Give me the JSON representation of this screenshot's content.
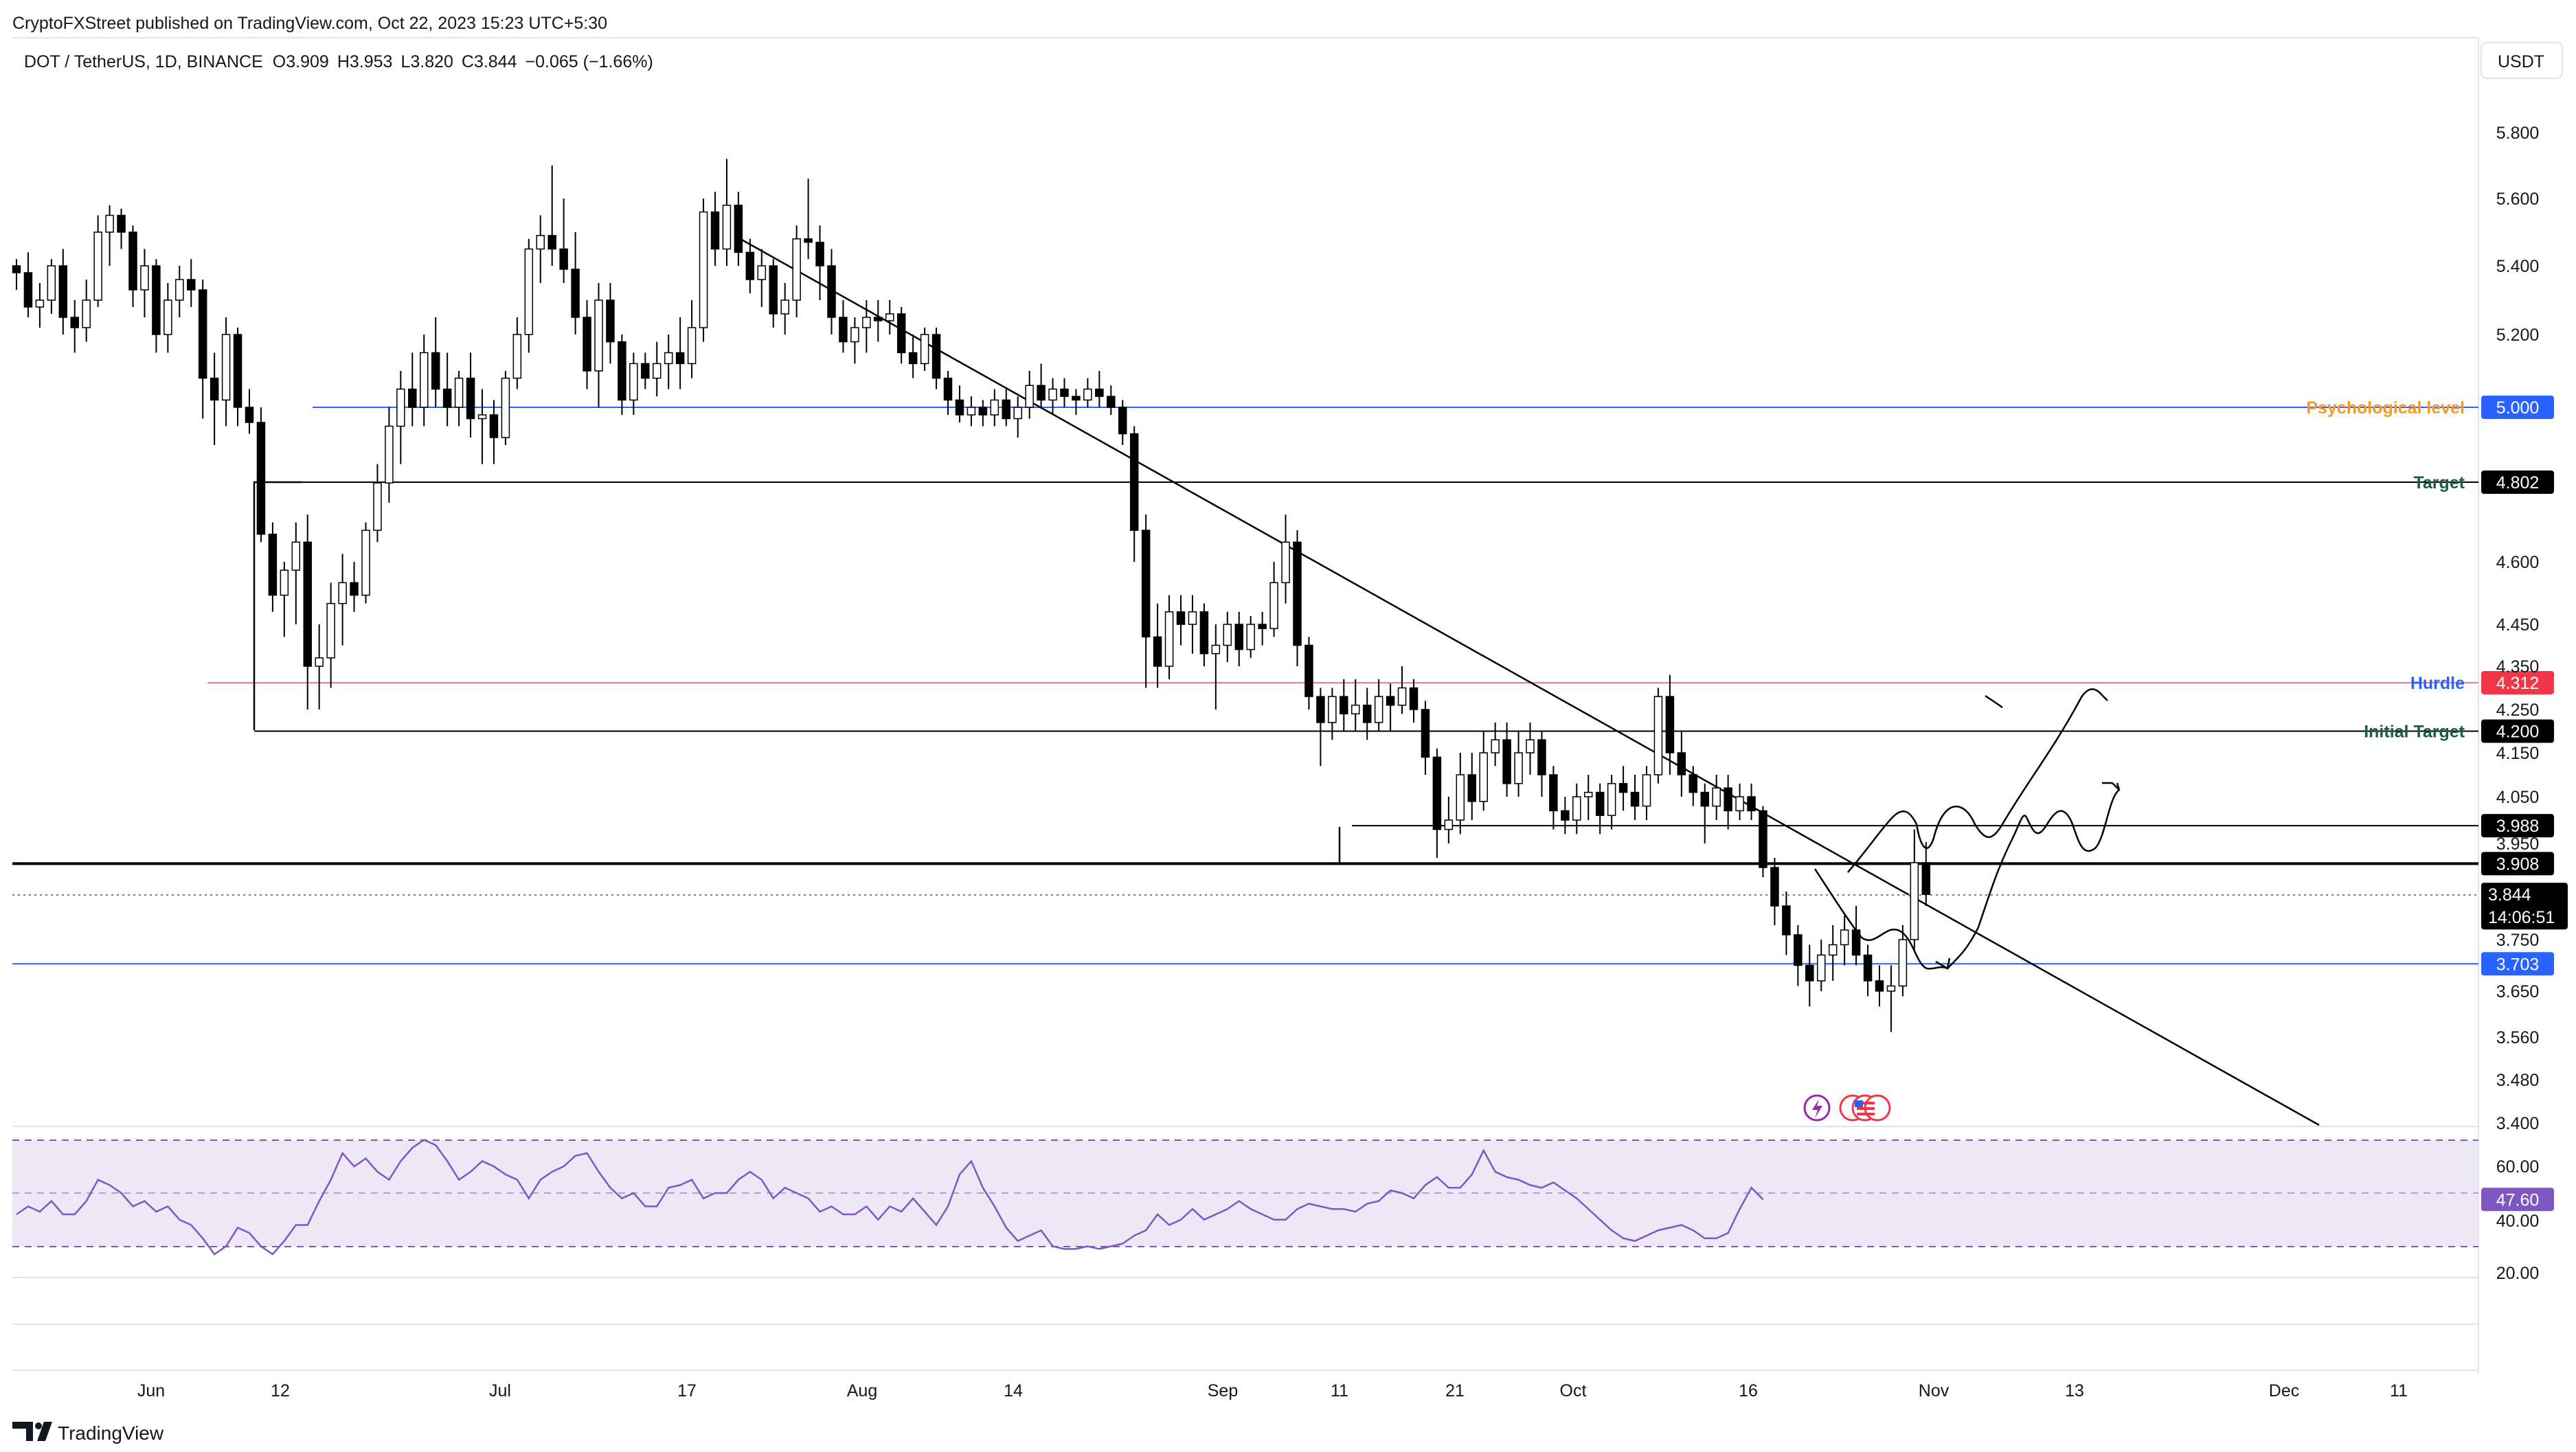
{
  "header": {
    "published_by": "CryptoFXStreet published on TradingView.com, Oct 22, 2023 15:23 UTC+5:30",
    "symbol": "DOT / TetherUS, 1D, BINANCE",
    "open": "O3.909",
    "high": "H3.953",
    "low": "L3.820",
    "close": "C3.844",
    "change": "−0.065 (−1.66%)"
  },
  "footer": {
    "logo_text": "TradingView"
  },
  "colors": {
    "up_candle": "#ffffff",
    "down_candle": "#000000",
    "psychological": "#f59a23",
    "hurdle_line": "#f08080",
    "hurdle_label": "#2962ff",
    "target": "#1e5c47",
    "blue_line": "#2962ff",
    "rsi": "#7e57c2",
    "rsi_band": "#ede7f6"
  },
  "chart_data": {
    "type": "candlestick",
    "currency": "USDT",
    "ylim": [
      3.4,
      5.9
    ],
    "y_ticks": [
      "5.800",
      "5.600",
      "5.400",
      "5.200",
      "4.600",
      "4.450",
      "4.350",
      "4.250",
      "4.150",
      "4.050",
      "3.950",
      "3.750",
      "3.650",
      "3.560",
      "3.480",
      "3.400"
    ],
    "x_ticks": [
      "Jun",
      "12",
      "Jul",
      "17",
      "Aug",
      "14",
      "Sep",
      "11",
      "21",
      "Oct",
      "16",
      "Nov",
      "13",
      "Dec",
      "11"
    ],
    "candles": [
      [
        5.4,
        5.42,
        5.33,
        5.38
      ],
      [
        5.38,
        5.44,
        5.25,
        5.28
      ],
      [
        5.28,
        5.35,
        5.22,
        5.3
      ],
      [
        5.3,
        5.42,
        5.26,
        5.4
      ],
      [
        5.4,
        5.45,
        5.2,
        5.25
      ],
      [
        5.25,
        5.3,
        5.15,
        5.22
      ],
      [
        5.22,
        5.36,
        5.18,
        5.3
      ],
      [
        5.3,
        5.55,
        5.28,
        5.5
      ],
      [
        5.5,
        5.58,
        5.4,
        5.55
      ],
      [
        5.55,
        5.57,
        5.45,
        5.5
      ],
      [
        5.5,
        5.52,
        5.28,
        5.33
      ],
      [
        5.33,
        5.45,
        5.25,
        5.4
      ],
      [
        5.4,
        5.42,
        5.15,
        5.2
      ],
      [
        5.2,
        5.35,
        5.15,
        5.3
      ],
      [
        5.3,
        5.4,
        5.25,
        5.36
      ],
      [
        5.36,
        5.42,
        5.28,
        5.33
      ],
      [
        5.33,
        5.36,
        4.97,
        5.08
      ],
      [
        5.08,
        5.15,
        4.9,
        5.02
      ],
      [
        5.02,
        5.25,
        4.95,
        5.2
      ],
      [
        5.2,
        5.22,
        4.95,
        5.0
      ],
      [
        5.0,
        5.05,
        4.93,
        4.96
      ],
      [
        4.96,
        5.0,
        4.65,
        4.67
      ],
      [
        4.67,
        4.7,
        4.48,
        4.52
      ],
      [
        4.52,
        4.6,
        4.42,
        4.58
      ],
      [
        4.58,
        4.7,
        4.45,
        4.65
      ],
      [
        4.65,
        4.72,
        4.25,
        4.35
      ],
      [
        4.35,
        4.45,
        4.25,
        4.37
      ],
      [
        4.37,
        4.55,
        4.3,
        4.5
      ],
      [
        4.5,
        4.62,
        4.4,
        4.55
      ],
      [
        4.55,
        4.6,
        4.48,
        4.52
      ],
      [
        4.52,
        4.7,
        4.5,
        4.68
      ],
      [
        4.68,
        4.85,
        4.65,
        4.8
      ],
      [
        4.8,
        5.0,
        4.75,
        4.95
      ],
      [
        4.95,
        5.1,
        4.85,
        5.05
      ],
      [
        5.05,
        5.15,
        4.95,
        5.0
      ],
      [
        5.0,
        5.2,
        4.95,
        5.15
      ],
      [
        5.15,
        5.25,
        5.0,
        5.05
      ],
      [
        5.05,
        5.15,
        4.95,
        5.0
      ],
      [
        5.0,
        5.1,
        4.95,
        5.08
      ],
      [
        5.08,
        5.15,
        4.92,
        4.97
      ],
      [
        4.97,
        5.05,
        4.85,
        4.98
      ],
      [
        4.98,
        5.02,
        4.85,
        4.92
      ],
      [
        4.92,
        5.1,
        4.9,
        5.08
      ],
      [
        5.08,
        5.25,
        5.05,
        5.2
      ],
      [
        5.2,
        5.48,
        5.15,
        5.45
      ],
      [
        5.45,
        5.55,
        5.35,
        5.49
      ],
      [
        5.49,
        5.7,
        5.4,
        5.45
      ],
      [
        5.45,
        5.6,
        5.35,
        5.39
      ],
      [
        5.39,
        5.5,
        5.2,
        5.25
      ],
      [
        5.25,
        5.3,
        5.05,
        5.1
      ],
      [
        5.1,
        5.35,
        5.0,
        5.3
      ],
      [
        5.3,
        5.35,
        5.12,
        5.18
      ],
      [
        5.18,
        5.2,
        4.98,
        5.02
      ],
      [
        5.02,
        5.15,
        4.98,
        5.12
      ],
      [
        5.12,
        5.15,
        5.05,
        5.08
      ],
      [
        5.08,
        5.18,
        5.03,
        5.12
      ],
      [
        5.12,
        5.2,
        5.05,
        5.15
      ],
      [
        5.15,
        5.25,
        5.05,
        5.12
      ],
      [
        5.12,
        5.3,
        5.08,
        5.22
      ],
      [
        5.22,
        5.6,
        5.18,
        5.56
      ],
      [
        5.56,
        5.62,
        5.4,
        5.45
      ],
      [
        5.45,
        5.72,
        5.4,
        5.58
      ],
      [
        5.58,
        5.62,
        5.4,
        5.44
      ],
      [
        5.44,
        5.48,
        5.32,
        5.36
      ],
      [
        5.36,
        5.45,
        5.28,
        5.4
      ],
      [
        5.4,
        5.42,
        5.22,
        5.26
      ],
      [
        5.26,
        5.35,
        5.2,
        5.3
      ],
      [
        5.3,
        5.52,
        5.25,
        5.48
      ],
      [
        5.48,
        5.66,
        5.42,
        5.47
      ],
      [
        5.47,
        5.52,
        5.3,
        5.4
      ],
      [
        5.4,
        5.45,
        5.2,
        5.25
      ],
      [
        5.25,
        5.3,
        5.15,
        5.18
      ],
      [
        5.18,
        5.25,
        5.12,
        5.22
      ],
      [
        5.22,
        5.3,
        5.15,
        5.25
      ],
      [
        5.25,
        5.3,
        5.18,
        5.24
      ],
      [
        5.24,
        5.3,
        5.2,
        5.26
      ],
      [
        5.26,
        5.28,
        5.12,
        5.15
      ],
      [
        5.15,
        5.2,
        5.08,
        5.12
      ],
      [
        5.12,
        5.22,
        5.1,
        5.2
      ],
      [
        5.2,
        5.22,
        5.05,
        5.08
      ],
      [
        5.08,
        5.1,
        4.98,
        5.02
      ],
      [
        5.02,
        5.06,
        4.96,
        4.98
      ],
      [
        4.98,
        5.03,
        4.95,
        5.0
      ],
      [
        5.0,
        5.02,
        4.95,
        4.98
      ],
      [
        4.98,
        5.05,
        4.95,
        5.02
      ],
      [
        5.02,
        5.05,
        4.95,
        4.97
      ],
      [
        4.97,
        5.03,
        4.92,
        5.0
      ],
      [
        5.0,
        5.1,
        4.97,
        5.06
      ],
      [
        5.06,
        5.12,
        5.0,
        5.02
      ],
      [
        5.02,
        5.08,
        4.98,
        5.05
      ],
      [
        5.05,
        5.08,
        5.0,
        5.03
      ],
      [
        5.03,
        5.05,
        4.98,
        5.02
      ],
      [
        5.02,
        5.08,
        5.0,
        5.05
      ],
      [
        5.05,
        5.1,
        5.0,
        5.03
      ],
      [
        5.03,
        5.06,
        4.98,
        5.0
      ],
      [
        5.0,
        5.02,
        4.9,
        4.93
      ],
      [
        4.93,
        4.95,
        4.6,
        4.68
      ],
      [
        4.68,
        4.72,
        4.3,
        4.42
      ],
      [
        4.42,
        4.5,
        4.3,
        4.35
      ],
      [
        4.35,
        4.52,
        4.32,
        4.48
      ],
      [
        4.48,
        4.52,
        4.4,
        4.45
      ],
      [
        4.45,
        4.52,
        4.38,
        4.48
      ],
      [
        4.48,
        4.5,
        4.35,
        4.38
      ],
      [
        4.38,
        4.45,
        4.25,
        4.4
      ],
      [
        4.4,
        4.48,
        4.36,
        4.45
      ],
      [
        4.45,
        4.48,
        4.35,
        4.39
      ],
      [
        4.39,
        4.47,
        4.37,
        4.45
      ],
      [
        4.45,
        4.48,
        4.4,
        4.44
      ],
      [
        4.44,
        4.6,
        4.42,
        4.55
      ],
      [
        4.55,
        4.72,
        4.5,
        4.65
      ],
      [
        4.65,
        4.68,
        4.35,
        4.4
      ],
      [
        4.4,
        4.42,
        4.25,
        4.28
      ],
      [
        4.28,
        4.3,
        4.12,
        4.22
      ],
      [
        4.22,
        4.3,
        4.18,
        4.28
      ],
      [
        4.28,
        4.32,
        4.2,
        4.24
      ],
      [
        4.24,
        4.32,
        4.2,
        4.26
      ],
      [
        4.26,
        4.3,
        4.18,
        4.22
      ],
      [
        4.22,
        4.32,
        4.2,
        4.28
      ],
      [
        4.28,
        4.31,
        4.2,
        4.26
      ],
      [
        4.26,
        4.35,
        4.24,
        4.3
      ],
      [
        4.3,
        4.32,
        4.22,
        4.25
      ],
      [
        4.25,
        4.27,
        4.1,
        4.14
      ],
      [
        4.14,
        4.16,
        3.92,
        3.98
      ],
      [
        3.98,
        4.05,
        3.95,
        4.0
      ],
      [
        4.0,
        4.15,
        3.97,
        4.1
      ],
      [
        4.1,
        4.15,
        4.0,
        4.04
      ],
      [
        4.04,
        4.2,
        4.02,
        4.15
      ],
      [
        4.15,
        4.22,
        4.12,
        4.18
      ],
      [
        4.18,
        4.22,
        4.05,
        4.08
      ],
      [
        4.08,
        4.2,
        4.05,
        4.15
      ],
      [
        4.15,
        4.22,
        4.1,
        4.18
      ],
      [
        4.18,
        4.2,
        4.05,
        4.1
      ],
      [
        4.1,
        4.12,
        3.98,
        4.02
      ],
      [
        4.02,
        4.05,
        3.97,
        4.0
      ],
      [
        4.0,
        4.08,
        3.97,
        4.05
      ],
      [
        4.05,
        4.1,
        4.0,
        4.06
      ],
      [
        4.06,
        4.08,
        3.97,
        4.01
      ],
      [
        4.01,
        4.1,
        3.98,
        4.08
      ],
      [
        4.08,
        4.12,
        4.02,
        4.06
      ],
      [
        4.06,
        4.1,
        4.0,
        4.03
      ],
      [
        4.03,
        4.12,
        4.0,
        4.1
      ],
      [
        4.1,
        4.3,
        4.08,
        4.28
      ],
      [
        4.28,
        4.33,
        4.1,
        4.15
      ],
      [
        4.15,
        4.2,
        4.05,
        4.1
      ],
      [
        4.1,
        4.12,
        4.03,
        4.06
      ],
      [
        4.06,
        4.08,
        3.95,
        4.03
      ],
      [
        4.03,
        4.1,
        4.0,
        4.07
      ],
      [
        4.07,
        4.1,
        3.98,
        4.02
      ],
      [
        4.02,
        4.08,
        4.0,
        4.05
      ],
      [
        4.05,
        4.08,
        4.0,
        4.02
      ],
      [
        4.02,
        4.03,
        3.88,
        3.9
      ],
      [
        3.9,
        3.92,
        3.78,
        3.82
      ],
      [
        3.82,
        3.85,
        3.72,
        3.76
      ],
      [
        3.76,
        3.78,
        3.66,
        3.7
      ],
      [
        3.7,
        3.74,
        3.62,
        3.67
      ],
      [
        3.67,
        3.75,
        3.65,
        3.72
      ],
      [
        3.72,
        3.78,
        3.67,
        3.74
      ],
      [
        3.74,
        3.8,
        3.7,
        3.77
      ],
      [
        3.77,
        3.82,
        3.7,
        3.72
      ],
      [
        3.72,
        3.74,
        3.64,
        3.67
      ],
      [
        3.67,
        3.7,
        3.62,
        3.65
      ],
      [
        3.65,
        3.7,
        3.57,
        3.66
      ],
      [
        3.66,
        3.78,
        3.64,
        3.75
      ],
      [
        3.75,
        3.98,
        3.73,
        3.91
      ],
      [
        3.91,
        3.953,
        3.82,
        3.844
      ]
    ],
    "levels": [
      {
        "label": "Psychological level",
        "value": "5.000",
        "color": "#f59a23",
        "line": "#2962ff",
        "tag_bg": "#2962ff"
      },
      {
        "label": "Target",
        "value": "4.802",
        "color": "#1e5c47",
        "line": "#000000",
        "tag_bg": "#000000"
      },
      {
        "label": "Hurdle",
        "value": "4.312",
        "color": "#2962ff",
        "line": "#f08080",
        "tag_bg": "#f23645"
      },
      {
        "label": "Initial Target",
        "value": "4.200",
        "color": "#1e5c47",
        "line": "#000000",
        "tag_bg": "#000000"
      },
      {
        "label": "",
        "value": "3.988",
        "color": "#000000",
        "line": "#000000",
        "tag_bg": "#000000"
      },
      {
        "label": "",
        "value": "3.908",
        "color": "#000000",
        "line": "#000000",
        "tag_bg": "#000000"
      },
      {
        "label": "",
        "value": "3.703",
        "color": "#2962ff",
        "line": "#2962ff",
        "tag_bg": "#2962ff"
      }
    ],
    "last_price": "3.844",
    "countdown": "14:06:51",
    "rsi": {
      "ticks": [
        "60.00",
        "40.00",
        "20.00"
      ],
      "value": "47.60",
      "upper": 70,
      "lower": 30,
      "values": [
        42,
        45,
        43,
        47,
        42,
        42,
        47,
        55,
        53,
        50,
        45,
        47,
        43,
        45,
        40,
        38,
        33,
        27,
        30,
        37,
        35,
        30,
        27,
        32,
        38,
        38,
        47,
        55,
        65,
        60,
        63,
        58,
        55,
        62,
        67,
        70,
        68,
        62,
        55,
        58,
        62,
        60,
        57,
        55,
        48,
        55,
        58,
        60,
        64,
        65,
        58,
        52,
        48,
        50,
        45,
        45,
        52,
        53,
        55,
        48,
        50,
        50,
        55,
        58,
        55,
        48,
        52,
        50,
        48,
        43,
        45,
        42,
        42,
        45,
        40,
        45,
        43,
        48,
        43,
        38,
        45,
        57,
        62,
        52,
        45,
        37,
        32,
        34,
        36,
        30,
        29,
        29,
        30,
        29,
        30,
        31,
        34,
        36,
        42,
        38,
        40,
        44,
        40,
        42,
        44,
        47,
        44,
        42,
        40,
        40,
        44,
        46,
        45,
        44,
        44,
        43,
        46,
        47,
        51,
        50,
        48,
        53,
        56,
        52,
        52,
        57,
        66,
        58,
        56,
        55,
        53,
        52,
        54,
        51,
        48,
        44,
        40,
        36,
        33,
        32,
        34,
        36,
        37,
        38,
        36,
        33,
        33,
        35,
        44,
        52,
        47.6
      ]
    }
  }
}
